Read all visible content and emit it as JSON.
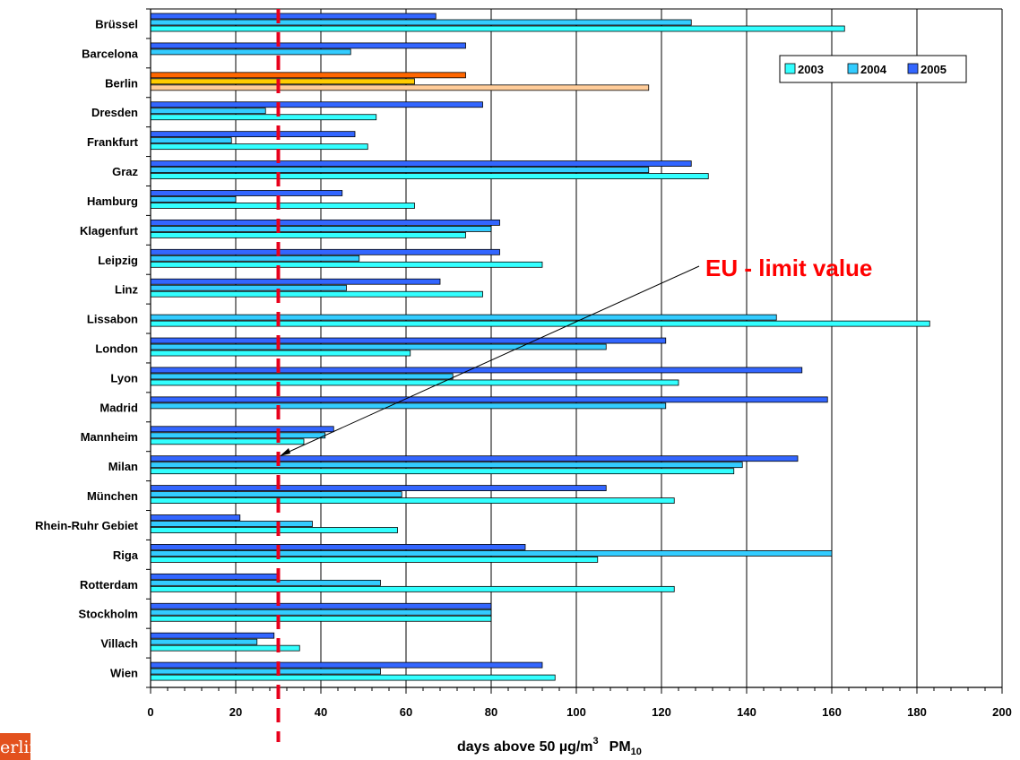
{
  "chart_data": {
    "type": "bar",
    "orientation": "horizontal",
    "categories": [
      "Brüssel",
      "Barcelona",
      "Berlin",
      "Dresden",
      "Frankfurt",
      "Graz",
      "Hamburg",
      "Klagenfurt",
      "Leipzig",
      "Linz",
      "Lissabon",
      "London",
      "Lyon",
      "Madrid",
      "Mannheim",
      "Milan",
      "München",
      "Rhein-Ruhr Gebiet",
      "Riga",
      "Rotterdam",
      "Stockholm",
      "Villach",
      "Wien"
    ],
    "series": [
      {
        "name": "2005",
        "values": [
          67,
          74,
          74,
          78,
          48,
          127,
          45,
          82,
          82,
          68,
          null,
          121,
          153,
          159,
          43,
          152,
          107,
          21,
          88,
          30,
          80,
          29,
          92
        ]
      },
      {
        "name": "2004",
        "values": [
          127,
          47,
          62,
          27,
          19,
          117,
          20,
          80,
          49,
          46,
          147,
          107,
          71,
          121,
          41,
          139,
          59,
          38,
          160,
          54,
          80,
          25,
          54
        ]
      },
      {
        "name": "2003",
        "values": [
          163,
          null,
          117,
          53,
          51,
          131,
          62,
          74,
          92,
          78,
          183,
          61,
          124,
          null,
          36,
          137,
          123,
          58,
          105,
          123,
          80,
          35,
          95
        ]
      }
    ],
    "xlabel_main": "days above 50 µg/m",
    "xlabel_sup": "3",
    "xlabel_pm": "PM",
    "xlabel_sub": "10",
    "xlim": [
      0,
      200
    ],
    "xticks": [
      "0",
      "20",
      "40",
      "60",
      "80",
      "100",
      "120",
      "140",
      "160",
      "180",
      "200"
    ],
    "legend": [
      "2003",
      "2004",
      "2005"
    ],
    "legend_position": "top-right",
    "grid": "vertical",
    "colors": {
      "2003": "#33ffff",
      "2004": "#33ccff",
      "2005": "#3366ff"
    },
    "highlight_colors": {
      "2003": "#ffcc99",
      "2004": "#ffcc00",
      "2005": "#ff6600"
    },
    "highlight_category": "Berlin",
    "limit_value": 30,
    "annotation": "EU - limit value"
  },
  "logo_text": "erlin"
}
